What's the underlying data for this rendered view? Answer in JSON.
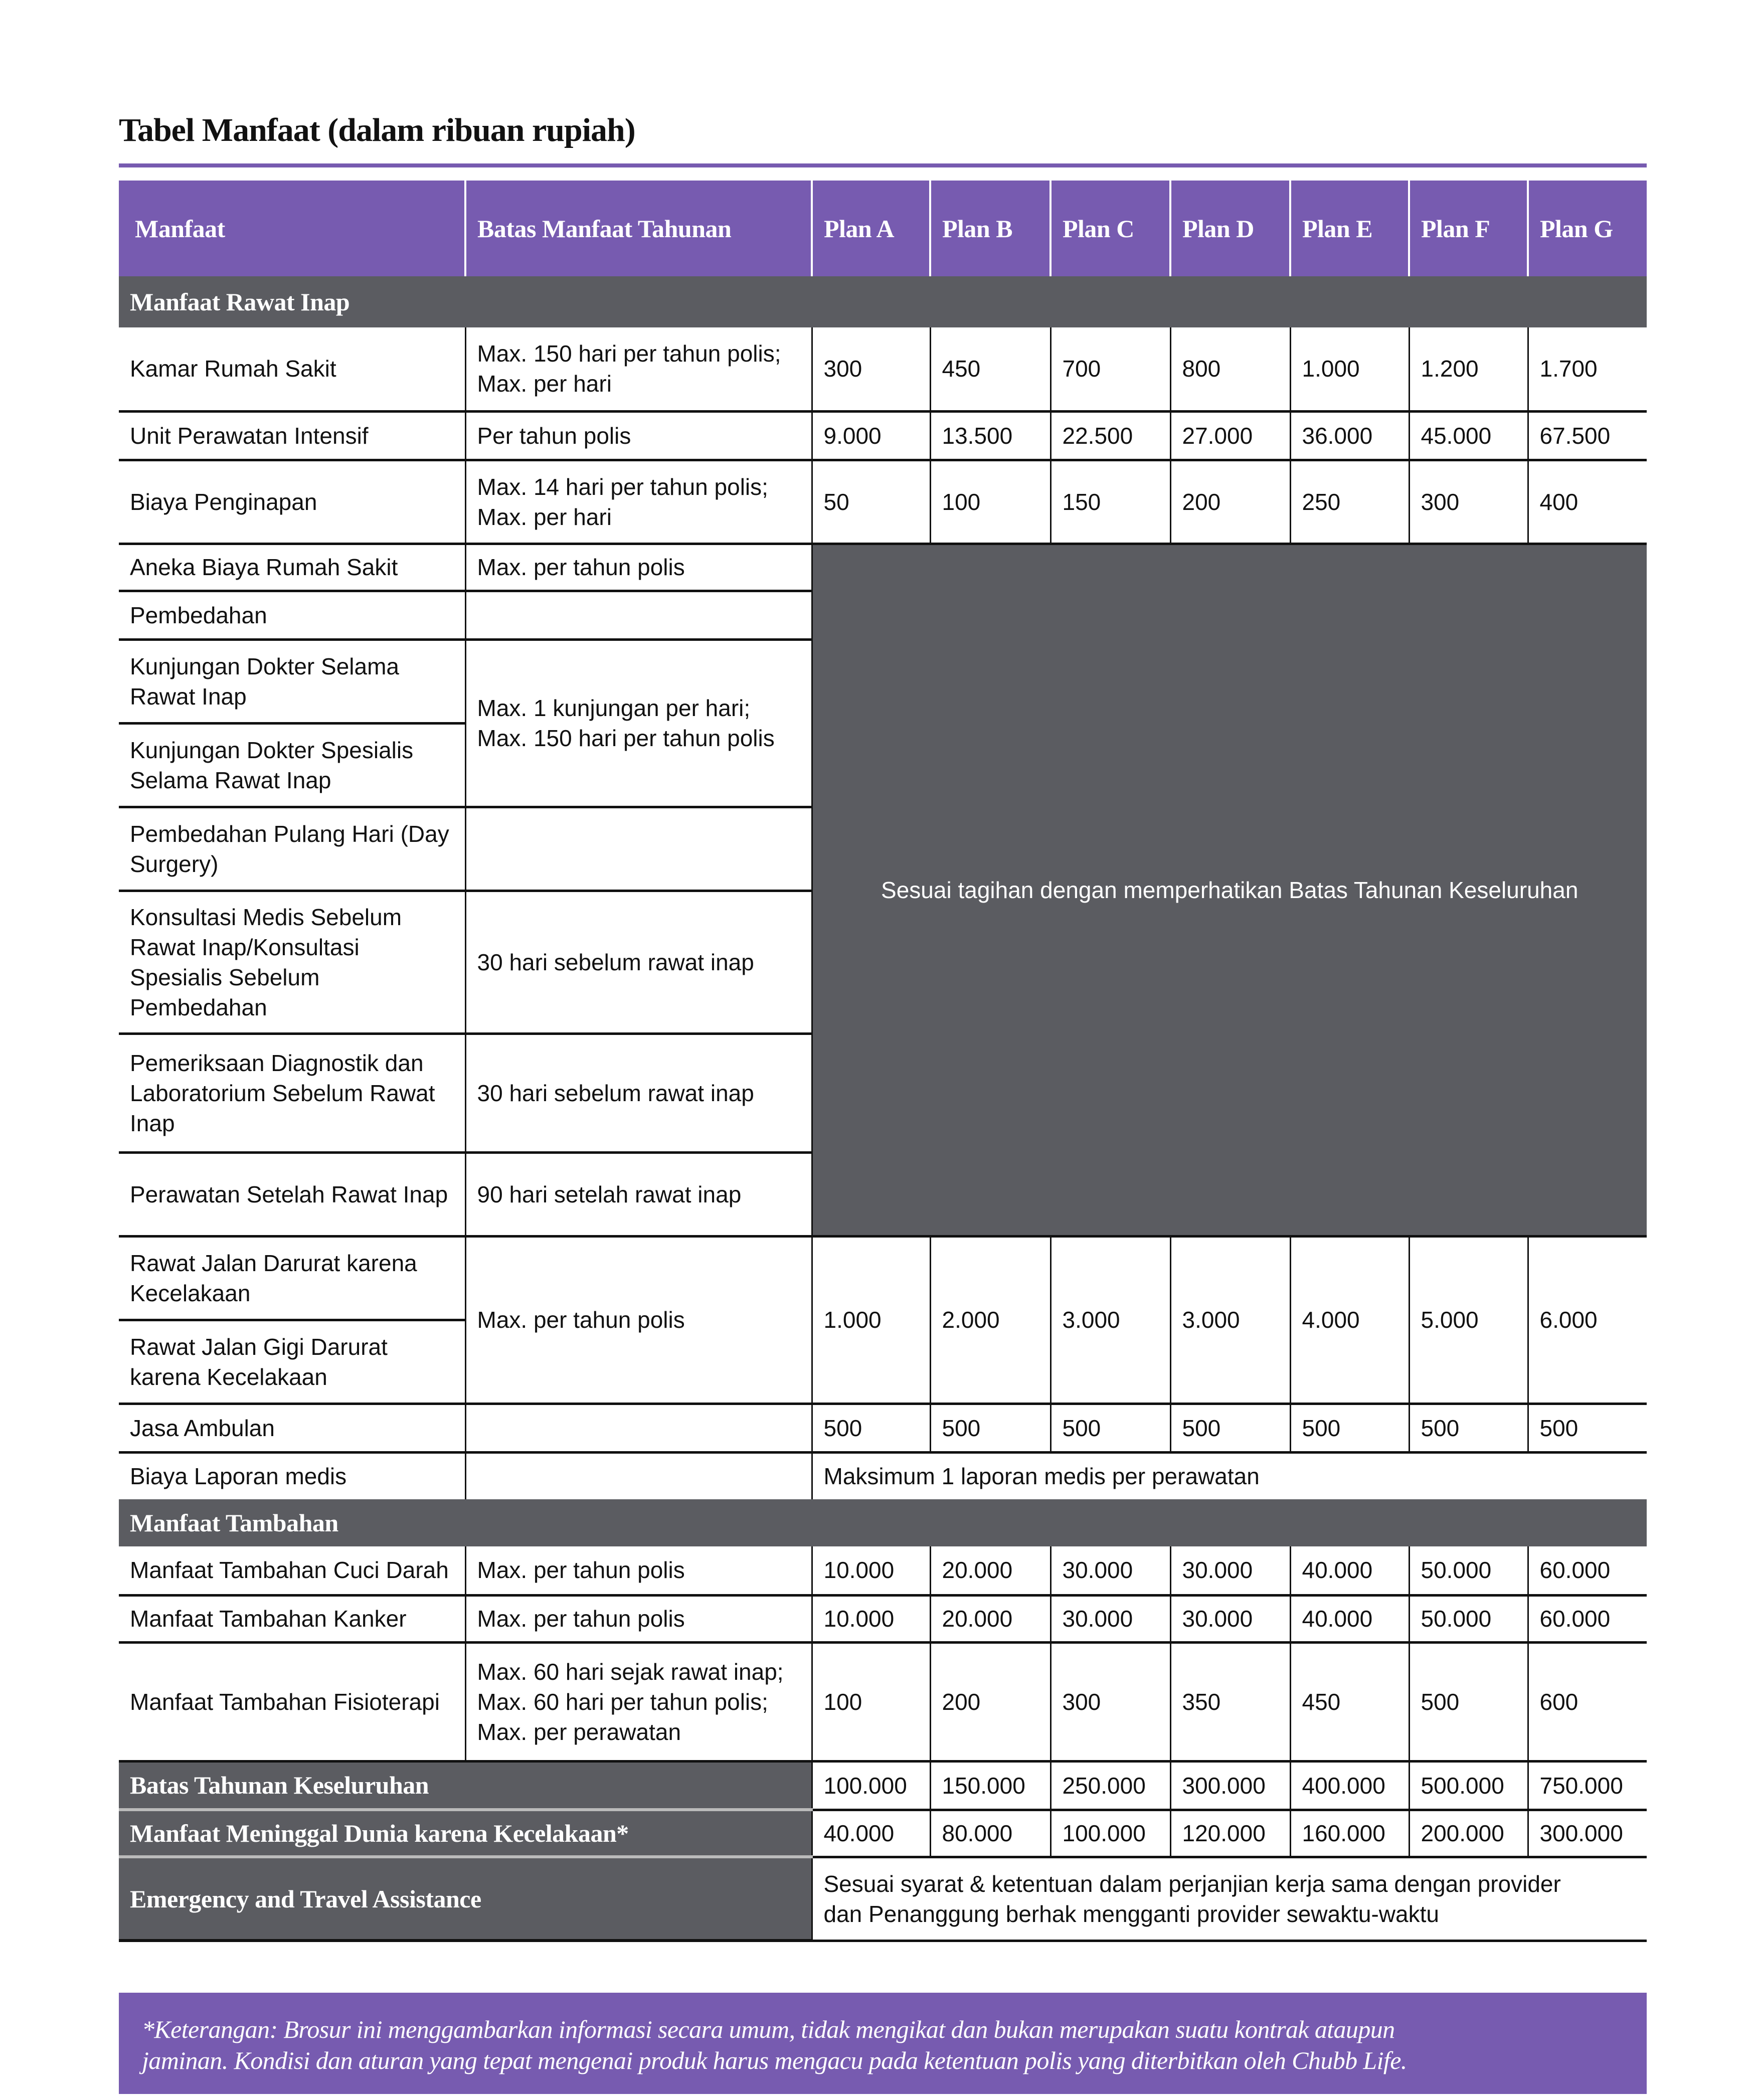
{
  "title": "Tabel Manfaat (dalam ribuan rupiah)",
  "colors": {
    "purple": "#775bb0",
    "grey": "#5b5c61"
  },
  "header": {
    "manfaat": "Manfaat",
    "batas": "Batas Manfaat Tahunan",
    "plans": [
      "Plan A",
      "Plan B",
      "Plan C",
      "Plan D",
      "Plan E",
      "Plan F",
      "Plan G"
    ]
  },
  "sections": {
    "rawat_inap": "Manfaat Rawat Inap",
    "tambahan": "Manfaat Tambahan"
  },
  "rows": {
    "kamar": {
      "name": "Kamar Rumah Sakit",
      "limit": [
        "Max. 150 hari per tahun polis;",
        "Max. per hari"
      ],
      "values": [
        "300",
        "450",
        "700",
        "800",
        "1.000",
        "1.200",
        "1.700"
      ]
    },
    "icu": {
      "name": "Unit Perawatan Intensif",
      "limit": "Per tahun polis",
      "values": [
        "9.000",
        "13.500",
        "22.500",
        "27.000",
        "36.000",
        "45.000",
        "67.500"
      ]
    },
    "penginapan": {
      "name": "Biaya Penginapan",
      "limit": [
        "Max. 14 hari per tahun polis;",
        "Max. per hari"
      ],
      "values": [
        "50",
        "100",
        "150",
        "200",
        "250",
        "300",
        "400"
      ]
    },
    "aneka": {
      "name": "Aneka Biaya Rumah Sakit",
      "limit": "Max. per tahun polis"
    },
    "pembedahan": {
      "name": "Pembedahan"
    },
    "kunjungan": {
      "name": "Kunjungan Dokter Selama Rawat Inap"
    },
    "kunjungan_spesialis": {
      "name": "Kunjungan Dokter Spesialis Selama Rawat Inap"
    },
    "kunjungan_limit": [
      "Max. 1 kunjungan per hari;",
      "Max. 150 hari per tahun polis"
    ],
    "day_surgery": {
      "name": "Pembedahan Pulang Hari (Day Surgery)"
    },
    "konsultasi": {
      "name": "Konsultasi Medis Sebelum Rawat Inap/Konsultasi Spesialis Sebelum Pembedahan",
      "limit": "30 hari sebelum rawat inap"
    },
    "diagnostik": {
      "name": "Pemeriksaan Diagnostik dan Laboratorium Sebelum Rawat Inap",
      "limit": "30 hari sebelum rawat inap"
    },
    "setelah": {
      "name": "Perawatan Setelah Rawat Inap",
      "limit": "90 hari setelah rawat inap"
    },
    "merged_text": "Sesuai tagihan dengan memperhatikan Batas Tahunan Keseluruhan",
    "darurat": {
      "name": "Rawat Jalan Darurat karena Kecelakaan"
    },
    "gigi": {
      "name": "Rawat Jalan Gigi Darurat karena Kecelakaan"
    },
    "darurat_limit": "Max. per tahun polis",
    "darurat_values": [
      "1.000",
      "2.000",
      "3.000",
      "3.000",
      "4.000",
      "5.000",
      "6.000"
    ],
    "ambulan": {
      "name": "Jasa Ambulan",
      "values": [
        "500",
        "500",
        "500",
        "500",
        "500",
        "500",
        "500"
      ]
    },
    "laporan": {
      "name": "Biaya Laporan medis",
      "text": "Maksimum 1 laporan medis per perawatan"
    },
    "cuci_darah": {
      "name": "Manfaat Tambahan Cuci Darah",
      "limit": "Max. per tahun polis",
      "values": [
        "10.000",
        "20.000",
        "30.000",
        "30.000",
        "40.000",
        "50.000",
        "60.000"
      ]
    },
    "kanker": {
      "name": "Manfaat Tambahan Kanker",
      "limit": "Max. per tahun polis",
      "values": [
        "10.000",
        "20.000",
        "30.000",
        "30.000",
        "40.000",
        "50.000",
        "60.000"
      ]
    },
    "fisio": {
      "name": "Manfaat Tambahan Fisioterapi",
      "limit": [
        "Max. 60 hari sejak rawat inap;",
        "Max. 60 hari per tahun polis;",
        "Max. per perawatan"
      ],
      "values": [
        "100",
        "200",
        "300",
        "350",
        "450",
        "500",
        "600"
      ]
    },
    "batas_tahunan": {
      "name": "Batas Tahunan Keseluruhan",
      "values": [
        "100.000",
        "150.000",
        "250.000",
        "300.000",
        "400.000",
        "500.000",
        "750.000"
      ]
    },
    "meninggal": {
      "name": "Manfaat Meninggal Dunia karena Kecelakaan*",
      "values": [
        "40.000",
        "80.000",
        "100.000",
        "120.000",
        "160.000",
        "200.000",
        "300.000"
      ]
    },
    "emergency": {
      "name": "Emergency and Travel Assistance",
      "text": [
        "Sesuai syarat & ketentuan dalam perjanjian kerja sama dengan provider",
        "dan Penanggung berhak mengganti provider sewaktu-waktu"
      ]
    }
  },
  "footnote": [
    "*Keterangan: Brosur ini menggambarkan informasi secara umum, tidak mengikat dan bukan merupakan suatu kontrak ataupun",
    "jaminan. Kondisi dan aturan yang tepat mengenai produk harus mengacu pada ketentuan polis yang diterbitkan oleh Chubb Life."
  ]
}
